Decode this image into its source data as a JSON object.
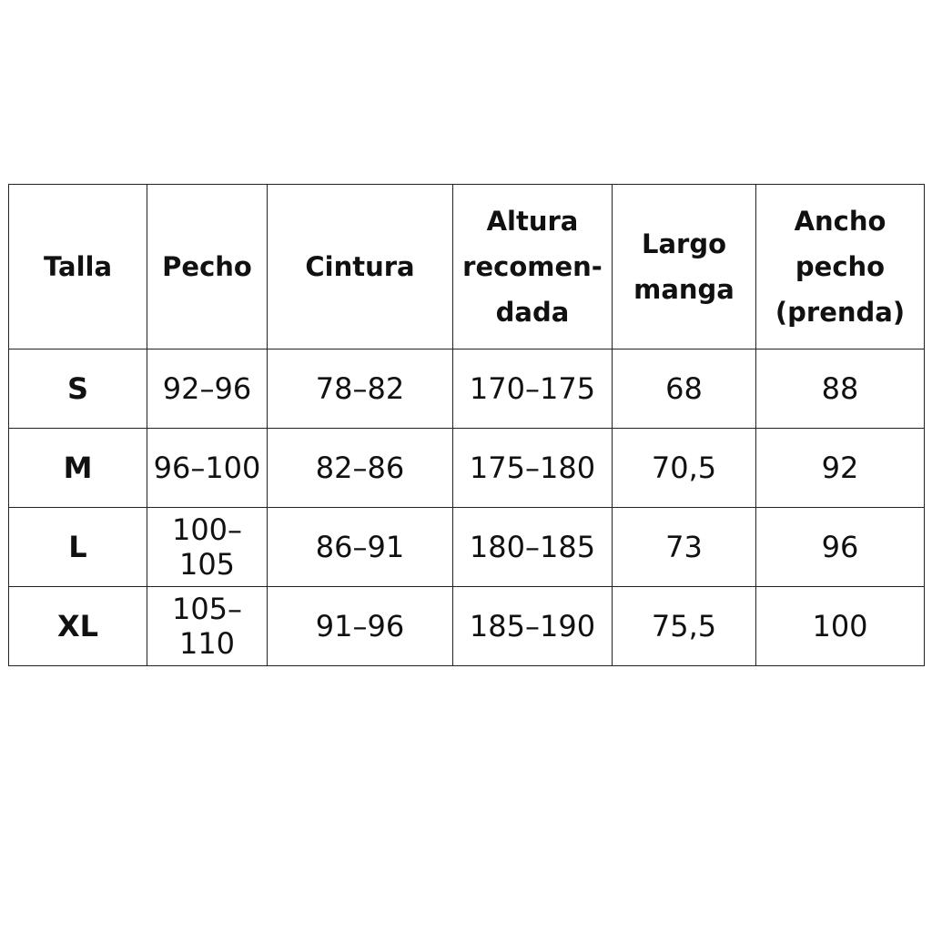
{
  "table": {
    "headers": [
      "Talla",
      "Pecho",
      "Cintura",
      "Altura recomen-dada",
      "Largo manga",
      "Ancho pecho (prenda)"
    ],
    "header_lines": [
      [
        "Talla"
      ],
      [
        "Pecho"
      ],
      [
        "Cintura"
      ],
      [
        "Altura",
        "recomen-",
        "dada"
      ],
      [
        "Largo",
        "manga"
      ],
      [
        "Ancho",
        "pecho",
        "(prenda)"
      ]
    ],
    "rows": [
      [
        "S",
        "92–96",
        "78–82",
        "170–175",
        "68",
        "88"
      ],
      [
        "M",
        "96–100",
        "82–86",
        "175–180",
        "70,5",
        "92"
      ],
      [
        "L",
        "100–105",
        "86–91",
        "180–185",
        "73",
        "96"
      ],
      [
        "XL",
        "105–110",
        "91–96",
        "185–190",
        "75,5",
        "100"
      ]
    ]
  }
}
